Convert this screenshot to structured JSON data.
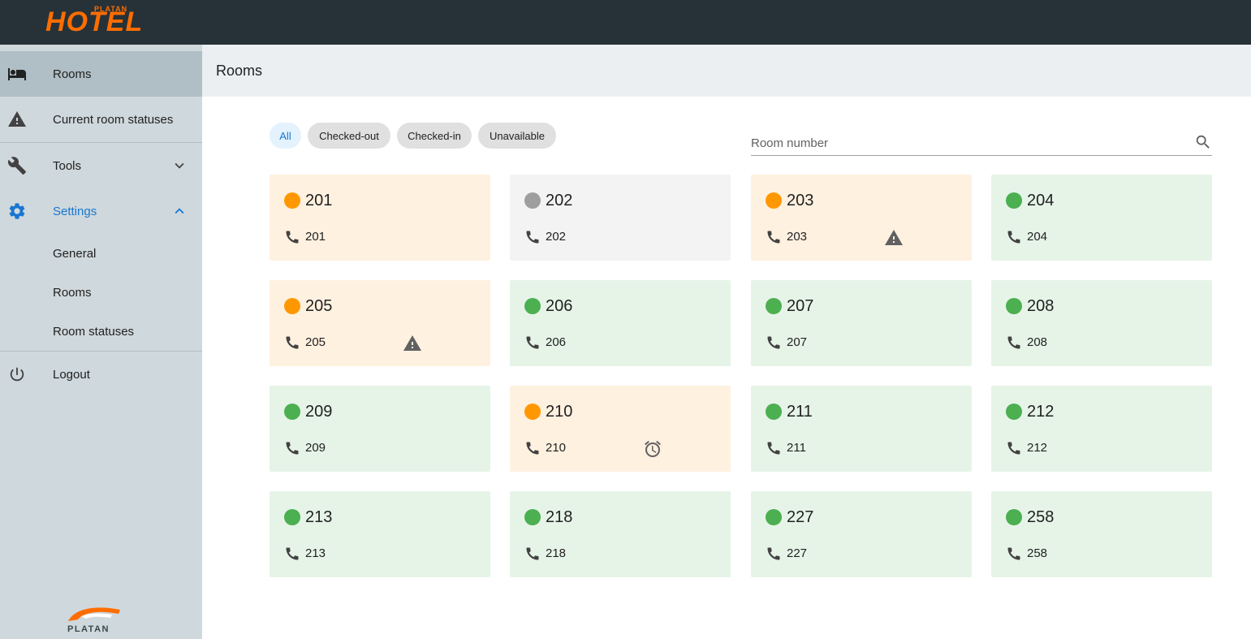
{
  "app": {
    "logo_small": "PLATAN",
    "logo_main": "HOTEL",
    "footer_logo": "PLATAN"
  },
  "sidebar": {
    "items": [
      {
        "label": "Rooms",
        "icon": "bed-icon"
      },
      {
        "label": "Current room statuses",
        "icon": "warning-icon"
      },
      {
        "label": "Tools",
        "icon": "wrench-icon"
      },
      {
        "label": "Settings",
        "icon": "gear-icon"
      },
      {
        "label": "Logout",
        "icon": "power-icon"
      }
    ],
    "settings_sub": [
      {
        "label": "General"
      },
      {
        "label": "Rooms"
      },
      {
        "label": "Room statuses"
      }
    ]
  },
  "header": {
    "title": "Rooms"
  },
  "filters": [
    {
      "label": "All",
      "selected": true
    },
    {
      "label": "Checked-out",
      "selected": false
    },
    {
      "label": "Checked-in",
      "selected": false
    },
    {
      "label": "Unavailable",
      "selected": false
    }
  ],
  "search": {
    "placeholder": "Room number"
  },
  "colors": {
    "orange_dot": "#ff9800",
    "green_dot": "#4caf50",
    "grey_dot": "#9e9e9e",
    "orange_bg": "#fff1e0",
    "green_bg": "#e6f4e8",
    "grey_bg": "#f3f3f3",
    "accent": "#1976d2"
  },
  "rooms": [
    {
      "number": "201",
      "phone": "201",
      "status": "orange",
      "extra": ""
    },
    {
      "number": "202",
      "phone": "202",
      "status": "grey",
      "extra": ""
    },
    {
      "number": "203",
      "phone": "203",
      "status": "orange",
      "extra": "warning-icon"
    },
    {
      "number": "204",
      "phone": "204",
      "status": "green",
      "extra": ""
    },
    {
      "number": "205",
      "phone": "205",
      "status": "orange",
      "extra": "warning-icon"
    },
    {
      "number": "206",
      "phone": "206",
      "status": "green",
      "extra": ""
    },
    {
      "number": "207",
      "phone": "207",
      "status": "green",
      "extra": ""
    },
    {
      "number": "208",
      "phone": "208",
      "status": "green",
      "extra": ""
    },
    {
      "number": "209",
      "phone": "209",
      "status": "green",
      "extra": ""
    },
    {
      "number": "210",
      "phone": "210",
      "status": "orange",
      "extra": "alarm-clock-icon"
    },
    {
      "number": "211",
      "phone": "211",
      "status": "green",
      "extra": ""
    },
    {
      "number": "212",
      "phone": "212",
      "status": "green",
      "extra": ""
    },
    {
      "number": "213",
      "phone": "213",
      "status": "green",
      "extra": ""
    },
    {
      "number": "218",
      "phone": "218",
      "status": "green",
      "extra": ""
    },
    {
      "number": "227",
      "phone": "227",
      "status": "green",
      "extra": ""
    },
    {
      "number": "258",
      "phone": "258",
      "status": "green",
      "extra": ""
    }
  ]
}
